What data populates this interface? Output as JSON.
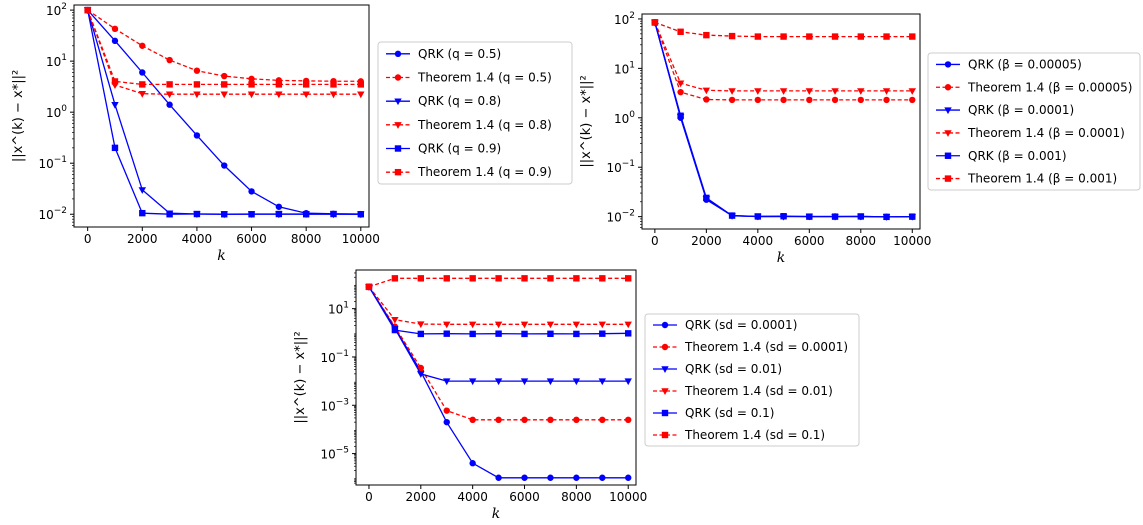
{
  "chart_data": [
    {
      "type": "line",
      "xlabel": "k",
      "ylabel": "||x^(k) − x*||²",
      "yscale": "log",
      "xlim": [
        -500,
        10300
      ],
      "ylim_exp": [
        -2.25,
        2.1
      ],
      "xticks": [
        0,
        2000,
        4000,
        6000,
        8000,
        10000
      ],
      "yticks": [
        {
          "v": -2,
          "label": "10",
          "exp": "−2"
        },
        {
          "v": -1,
          "label": "10",
          "exp": "−1"
        },
        {
          "v": 0,
          "label": "10",
          "exp": "0"
        },
        {
          "v": 1,
          "label": "10",
          "exp": "1"
        },
        {
          "v": 2,
          "label": "10",
          "exp": "2"
        }
      ],
      "grid": false,
      "legend_position": "right",
      "series": [
        {
          "name": "QRK (q = 0.5)",
          "style": "solid",
          "color": "#0000ff",
          "marker": "circle",
          "x": [
            0,
            1000,
            2000,
            3000,
            4000,
            5000,
            6000,
            7000,
            8000,
            9000,
            10000
          ],
          "y": [
            100,
            25,
            6,
            1.4,
            0.35,
            0.09,
            0.028,
            0.014,
            0.0105,
            0.0102,
            0.0101
          ]
        },
        {
          "name": "Theorem 1.4 (q = 0.5)",
          "style": "dashed",
          "color": "#ff0000",
          "marker": "circle",
          "x": [
            0,
            1000,
            2000,
            3000,
            4000,
            5000,
            6000,
            7000,
            8000,
            9000,
            10000
          ],
          "y": [
            100,
            43,
            20,
            10.5,
            6.5,
            5.1,
            4.5,
            4.2,
            4.1,
            4.05,
            4.02
          ]
        },
        {
          "name": "QRK (q = 0.8)",
          "style": "solid",
          "color": "#0000ff",
          "marker": "triangle",
          "x": [
            0,
            1000,
            2000,
            3000,
            4000,
            5000,
            6000,
            7000,
            8000,
            9000,
            10000
          ],
          "y": [
            100,
            1.4,
            0.03,
            0.0105,
            0.0101,
            0.01,
            0.0101,
            0.01,
            0.0101,
            0.01,
            0.01
          ]
        },
        {
          "name": "Theorem 1.4 (q = 0.8)",
          "style": "dashed",
          "color": "#ff0000",
          "marker": "triangle",
          "x": [
            0,
            1000,
            2000,
            3000,
            4000,
            5000,
            6000,
            7000,
            8000,
            9000,
            10000
          ],
          "y": [
            100,
            3.4,
            2.3,
            2.25,
            2.25,
            2.25,
            2.25,
            2.25,
            2.25,
            2.25,
            2.25
          ]
        },
        {
          "name": "QRK (q = 0.9)",
          "style": "solid",
          "color": "#0000ff",
          "marker": "square",
          "x": [
            0,
            1000,
            2000,
            3000,
            4000,
            5000,
            6000,
            7000,
            8000,
            9000,
            10000
          ],
          "y": [
            100,
            0.2,
            0.0105,
            0.01,
            0.0101,
            0.01,
            0.01,
            0.0101,
            0.01,
            0.0101,
            0.01
          ]
        },
        {
          "name": "Theorem 1.4 (q = 0.9)",
          "style": "dashed",
          "color": "#ff0000",
          "marker": "square",
          "x": [
            0,
            1000,
            2000,
            3000,
            4000,
            5000,
            6000,
            7000,
            8000,
            9000,
            10000
          ],
          "y": [
            100,
            4,
            3.5,
            3.5,
            3.5,
            3.5,
            3.5,
            3.5,
            3.5,
            3.5,
            3.5
          ]
        }
      ]
    },
    {
      "type": "line",
      "xlabel": "k",
      "ylabel": "||x^(k) − x*||²",
      "yscale": "log",
      "xlim": [
        -500,
        10300
      ],
      "ylim_exp": [
        -2.25,
        2.1
      ],
      "xticks": [
        0,
        2000,
        4000,
        6000,
        8000,
        10000
      ],
      "yticks": [
        {
          "v": -2,
          "label": "10",
          "exp": "−2"
        },
        {
          "v": -1,
          "label": "10",
          "exp": "−1"
        },
        {
          "v": 0,
          "label": "10",
          "exp": "0"
        },
        {
          "v": 1,
          "label": "10",
          "exp": "1"
        },
        {
          "v": 2,
          "label": "10",
          "exp": "2"
        }
      ],
      "grid": false,
      "legend_position": "right",
      "series": [
        {
          "name": "QRK (β = 0.00005)",
          "style": "solid",
          "color": "#0000ff",
          "marker": "circle",
          "x": [
            0,
            1000,
            2000,
            3000,
            4000,
            5000,
            6000,
            7000,
            8000,
            9000,
            10000
          ],
          "y": [
            85,
            1.0,
            0.022,
            0.0105,
            0.01,
            0.0101,
            0.01,
            0.0101,
            0.01,
            0.0099,
            0.01
          ]
        },
        {
          "name": "Theorem 1.4 (β = 0.00005)",
          "style": "dashed",
          "color": "#ff0000",
          "marker": "circle",
          "x": [
            0,
            1000,
            2000,
            3000,
            4000,
            5000,
            6000,
            7000,
            8000,
            9000,
            10000
          ],
          "y": [
            85,
            3.3,
            2.35,
            2.3,
            2.3,
            2.3,
            2.3,
            2.3,
            2.3,
            2.3,
            2.3
          ]
        },
        {
          "name": "QRK (β = 0.0001)",
          "style": "solid",
          "color": "#0000ff",
          "marker": "triangle",
          "x": [
            0,
            1000,
            2000,
            3000,
            4000,
            5000,
            6000,
            7000,
            8000,
            9000,
            10000
          ],
          "y": [
            85,
            1.05,
            0.023,
            0.0104,
            0.0101,
            0.01,
            0.0101,
            0.01,
            0.0101,
            0.0099,
            0.01
          ]
        },
        {
          "name": "Theorem 1.4 (β = 0.0001)",
          "style": "dashed",
          "color": "#ff0000",
          "marker": "triangle",
          "x": [
            0,
            1000,
            2000,
            3000,
            4000,
            5000,
            6000,
            7000,
            8000,
            9000,
            10000
          ],
          "y": [
            85,
            5.0,
            3.6,
            3.5,
            3.5,
            3.5,
            3.5,
            3.5,
            3.5,
            3.5,
            3.5
          ]
        },
        {
          "name": "QRK (β = 0.001)",
          "style": "solid",
          "color": "#0000ff",
          "marker": "square",
          "x": [
            0,
            1000,
            2000,
            3000,
            4000,
            5000,
            6000,
            7000,
            8000,
            9000,
            10000
          ],
          "y": [
            85,
            1.1,
            0.024,
            0.0105,
            0.0101,
            0.0102,
            0.01,
            0.01,
            0.0101,
            0.0099,
            0.01
          ]
        },
        {
          "name": "Theorem 1.4 (β = 0.001)",
          "style": "dashed",
          "color": "#ff0000",
          "marker": "square",
          "x": [
            0,
            1000,
            2000,
            3000,
            4000,
            5000,
            6000,
            7000,
            8000,
            9000,
            10000
          ],
          "y": [
            85,
            55,
            47,
            45,
            44,
            44,
            44,
            44,
            44,
            44,
            44
          ]
        }
      ]
    },
    {
      "type": "line",
      "xlabel": "k",
      "ylabel": "||x^(k) − x*||²",
      "yscale": "log",
      "xlim": [
        -500,
        10300
      ],
      "ylim_exp": [
        -6.3,
        2.6
      ],
      "xticks": [
        0,
        2000,
        4000,
        6000,
        8000,
        10000
      ],
      "yticks": [
        {
          "v": -5,
          "label": "10",
          "exp": "−5"
        },
        {
          "v": -3,
          "label": "10",
          "exp": "−3"
        },
        {
          "v": -1,
          "label": "10",
          "exp": "−1"
        },
        {
          "v": 1,
          "label": "10",
          "exp": "1"
        }
      ],
      "grid": false,
      "legend_position": "right",
      "series": [
        {
          "name": "QRK (sd = 0.0001)",
          "style": "solid",
          "color": "#0000ff",
          "marker": "circle",
          "x": [
            0,
            1000,
            2000,
            3000,
            4000,
            5000,
            6000,
            7000,
            8000,
            9000,
            10000
          ],
          "y": [
            80,
            1.6,
            0.025,
            0.0002,
            4e-06,
            1e-06,
            1e-06,
            1e-06,
            1e-06,
            1e-06,
            1e-06
          ]
        },
        {
          "name": "Theorem 1.4 (sd = 0.0001)",
          "style": "dashed",
          "color": "#ff0000",
          "marker": "circle",
          "x": [
            0,
            1000,
            2000,
            3000,
            4000,
            5000,
            6000,
            7000,
            8000,
            9000,
            10000
          ],
          "y": [
            80,
            1.8,
            0.035,
            0.0006,
            0.00025,
            0.00025,
            0.00025,
            0.00025,
            0.00025,
            0.00025,
            0.00025
          ]
        },
        {
          "name": "QRK (sd = 0.01)",
          "style": "solid",
          "color": "#0000ff",
          "marker": "triangle",
          "x": [
            0,
            1000,
            2000,
            3000,
            4000,
            5000,
            6000,
            7000,
            8000,
            9000,
            10000
          ],
          "y": [
            80,
            1.5,
            0.02,
            0.01,
            0.01,
            0.01,
            0.01,
            0.01,
            0.01,
            0.01,
            0.01
          ]
        },
        {
          "name": "Theorem 1.4 (sd = 0.01)",
          "style": "dashed",
          "color": "#ff0000",
          "marker": "triangle",
          "x": [
            0,
            1000,
            2000,
            3000,
            4000,
            5000,
            6000,
            7000,
            8000,
            9000,
            10000
          ],
          "y": [
            80,
            3.5,
            2.3,
            2.25,
            2.25,
            2.25,
            2.25,
            2.25,
            2.25,
            2.25,
            2.25
          ]
        },
        {
          "name": "QRK (sd = 0.1)",
          "style": "solid",
          "color": "#0000ff",
          "marker": "square",
          "x": [
            0,
            1000,
            2000,
            3000,
            4000,
            5000,
            6000,
            7000,
            8000,
            9000,
            10000
          ],
          "y": [
            80,
            1.3,
            0.9,
            0.92,
            0.9,
            0.92,
            0.9,
            0.91,
            0.9,
            0.92,
            0.95
          ]
        },
        {
          "name": "Theorem 1.4 (sd = 0.1)",
          "style": "dashed",
          "color": "#ff0000",
          "marker": "square",
          "x": [
            0,
            1000,
            2000,
            3000,
            4000,
            5000,
            6000,
            7000,
            8000,
            9000,
            10000
          ],
          "y": [
            80,
            180,
            180,
            180,
            180,
            180,
            180,
            180,
            180,
            180,
            180
          ]
        }
      ]
    }
  ]
}
